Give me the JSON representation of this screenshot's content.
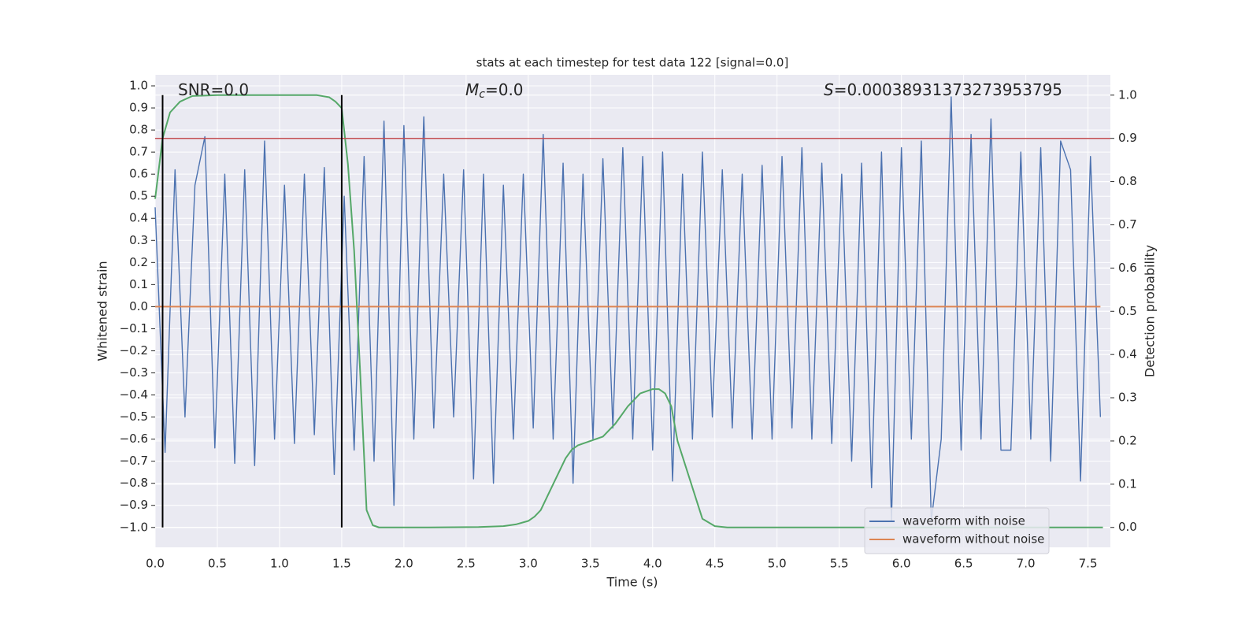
{
  "chart_data": {
    "type": "line",
    "title": "stats at each timestep for test data 122 [signal=0.0]",
    "xlabel": "Time (s)",
    "ylabel": "Whitened strain",
    "y2label": "Detection probability",
    "annotations": [
      {
        "parts": [
          "SNR=0.0"
        ]
      },
      {
        "parts": [
          "M",
          "c",
          "=0.0"
        ]
      },
      {
        "parts": [
          "S",
          "=0.00038931373273953795"
        ]
      }
    ],
    "xlim": [
      0,
      7.68
    ],
    "ylim": [
      -1.09,
      1.05
    ],
    "y2lim": [
      -0.046,
      1.047
    ],
    "xticks": [
      {
        "value": 0,
        "label": "0.0"
      },
      0.5,
      {
        "value": 1,
        "label": "1.0"
      },
      1.5,
      {
        "value": 2,
        "label": "2.0"
      },
      2.5,
      {
        "value": 3,
        "label": "3.0"
      },
      3.5,
      {
        "value": 4,
        "label": "4.0"
      },
      4.5,
      {
        "value": 5,
        "label": "5.0"
      },
      5.5,
      {
        "value": 6,
        "label": "6.0"
      },
      6.5,
      {
        "value": 7,
        "label": "7.0"
      },
      7.5
    ],
    "yticks": [
      {
        "value": -1,
        "label": "−1.0"
      },
      {
        "value": -0.9,
        "label": "−0.9"
      },
      {
        "value": -0.8,
        "label": "−0.8"
      },
      {
        "value": -0.7,
        "label": "−0.7"
      },
      {
        "value": -0.6,
        "label": "−0.6"
      },
      {
        "value": -0.5,
        "label": "−0.5"
      },
      {
        "value": -0.4,
        "label": "−0.4"
      },
      {
        "value": -0.3,
        "label": "−0.3"
      },
      {
        "value": -0.2,
        "label": "−0.2"
      },
      {
        "value": -0.1,
        "label": "−0.1"
      },
      {
        "value": 0,
        "label": "0.0"
      },
      0.1,
      0.2,
      0.3,
      0.4,
      0.5,
      0.6,
      0.7,
      0.8,
      0.9,
      {
        "value": 1,
        "label": "1.0"
      }
    ],
    "y2ticks": [
      {
        "value": 0,
        "label": "0.0"
      },
      0.1,
      0.2,
      0.3,
      0.4,
      0.5,
      0.6,
      0.7,
      0.8,
      0.9,
      {
        "value": 1,
        "label": "1.0"
      }
    ],
    "grid": true,
    "legend": "lower right",
    "series": [
      {
        "name": "waveform with noise",
        "color": "#4c72b0",
        "x": [
          0,
          0.08,
          0.16,
          0.24,
          0.32,
          0.4,
          0.48,
          0.56,
          0.64,
          0.72,
          0.8,
          0.88,
          0.96,
          1.04,
          1.12,
          1.2,
          1.28,
          1.36,
          1.44,
          1.52,
          1.6,
          1.68,
          1.76,
          1.84,
          1.92,
          2,
          2.08,
          2.16,
          2.24,
          2.32,
          2.4,
          2.48,
          2.56,
          2.64,
          2.72,
          2.8,
          2.88,
          2.96,
          3.04,
          3.12,
          3.2,
          3.28,
          3.36,
          3.44,
          3.52,
          3.6,
          3.68,
          3.76,
          3.84,
          3.92,
          4,
          4.08,
          4.16,
          4.24,
          4.32,
          4.4,
          4.48,
          4.56,
          4.64,
          4.72,
          4.8,
          4.88,
          4.96,
          5.04,
          5.12,
          5.2,
          5.28,
          5.36,
          5.44,
          5.52,
          5.6,
          5.68,
          5.76,
          5.84,
          5.92,
          6,
          6.08,
          6.16,
          6.24,
          6.32,
          6.4,
          6.48,
          6.56,
          6.64,
          6.72,
          6.8,
          6.88,
          6.96,
          7.04,
          7.12,
          7.2,
          7.28,
          7.36,
          7.44,
          7.52,
          7.6
        ],
        "values": [
          0.45,
          -0.66,
          0.62,
          -0.5,
          0.55,
          0.77,
          -0.64,
          0.6,
          -0.71,
          0.62,
          -0.72,
          0.75,
          -0.6,
          0.55,
          -0.62,
          0.6,
          -0.58,
          0.63,
          -0.76,
          0.5,
          -0.65,
          0.68,
          -0.7,
          0.84,
          -0.9,
          0.82,
          -0.6,
          0.86,
          -0.55,
          0.6,
          -0.5,
          0.62,
          -0.78,
          0.6,
          -0.8,
          0.55,
          -0.6,
          0.6,
          -0.55,
          0.78,
          -0.6,
          0.65,
          -0.8,
          0.6,
          -0.6,
          0.67,
          -0.55,
          0.72,
          -0.6,
          0.68,
          -0.65,
          0.7,
          -0.79,
          0.6,
          -0.6,
          0.7,
          -0.5,
          0.62,
          -0.55,
          0.6,
          -0.6,
          0.64,
          -0.6,
          0.68,
          -0.55,
          0.72,
          -0.6,
          0.65,
          -0.62,
          0.6,
          -0.7,
          0.65,
          -0.82,
          0.7,
          -0.97,
          0.72,
          -0.6,
          0.75,
          -0.97,
          -0.6,
          0.95,
          -0.65,
          0.78,
          -0.6,
          0.85,
          -0.65,
          -0.65,
          0.7,
          -0.6,
          0.72,
          -0.7,
          0.75,
          0.62,
          -0.79,
          0.68,
          -0.5
        ]
      },
      {
        "name": "waveform without noise",
        "color": "#dd8452",
        "x": [
          0,
          7.6
        ],
        "values": [
          0,
          0
        ]
      },
      {
        "color": "#55a868",
        "axis": "y2",
        "x": [
          0,
          0.06,
          0.12,
          0.2,
          0.3,
          0.5,
          0.8,
          1.1,
          1.3,
          1.4,
          1.45,
          1.5,
          1.55,
          1.6,
          1.65,
          1.7,
          1.75,
          1.8,
          2.2,
          2.6,
          2.8,
          2.9,
          3.0,
          3.05,
          3.1,
          3.15,
          3.2,
          3.3,
          3.35,
          3.4,
          3.5,
          3.6,
          3.7,
          3.8,
          3.9,
          4.0,
          4.05,
          4.1,
          4.15,
          4.2,
          4.3,
          4.4,
          4.5,
          4.6,
          5.5,
          6.5,
          7.62
        ],
        "values": [
          0.76,
          0.9,
          0.96,
          0.985,
          0.998,
          1,
          1,
          1,
          1,
          0.995,
          0.985,
          0.97,
          0.84,
          0.64,
          0.35,
          0.04,
          0.005,
          0,
          0,
          0.001,
          0.003,
          0.007,
          0.015,
          0.025,
          0.04,
          0.07,
          0.1,
          0.16,
          0.18,
          0.19,
          0.2,
          0.21,
          0.24,
          0.28,
          0.31,
          0.32,
          0.32,
          0.31,
          0.28,
          0.2,
          0.11,
          0.02,
          0.003,
          0,
          0,
          0,
          0
        ]
      }
    ],
    "threshold": {
      "value": 0.9,
      "axis": "y2",
      "color": "#c44e52"
    },
    "vlines": {
      "x": [
        0.06,
        1.5
      ],
      "ymin": 0,
      "ymax": 1,
      "axis": "y2",
      "color": "#000000"
    }
  }
}
